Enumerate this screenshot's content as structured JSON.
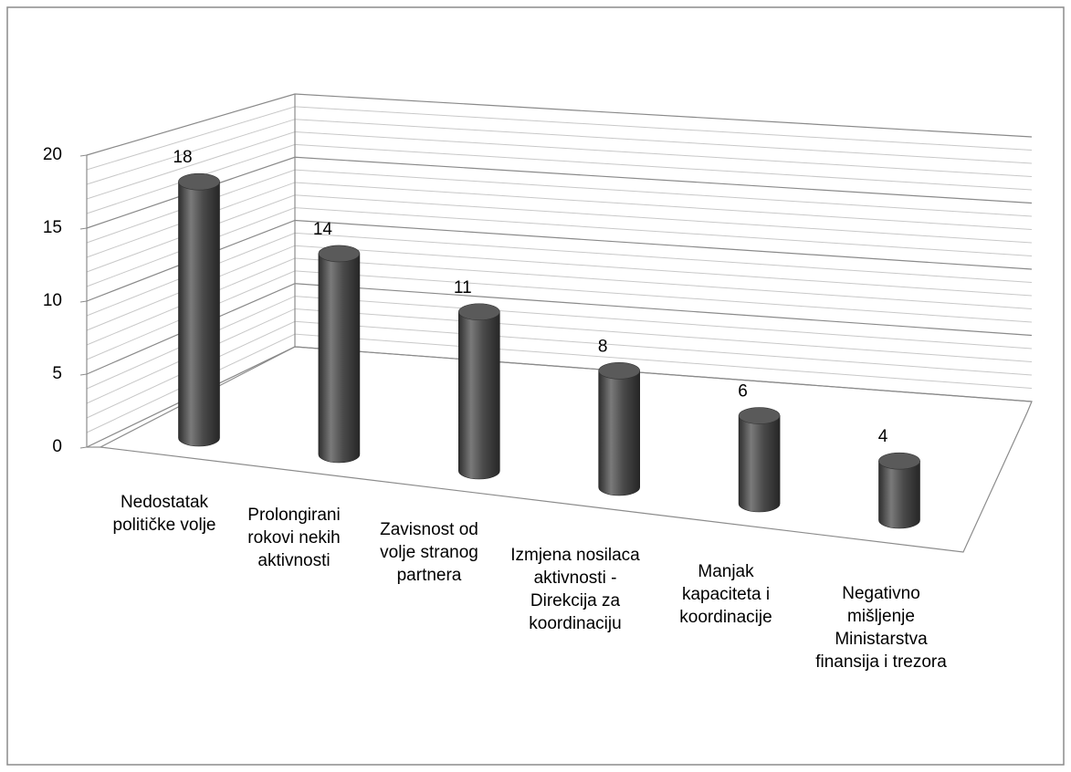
{
  "chart_data": {
    "type": "bar3d",
    "categories": [
      "Nedostatak političke volje",
      "Prolongirani rokovi nekih aktivnosti",
      "Zavisnost od volje stranog partnera",
      "Izmjena nosilaca aktivnosti - Direkcija za koordinaciju",
      "Manjak kapaciteta i koordinacije",
      "Negativno mišljenje Ministarstva finansija i trezora"
    ],
    "values": [
      18,
      14,
      11,
      8,
      6,
      4
    ],
    "color": "#4d4d4d",
    "ylim": [
      0,
      20
    ],
    "yticks": [
      0,
      5,
      10,
      15,
      20
    ],
    "grid": true
  }
}
